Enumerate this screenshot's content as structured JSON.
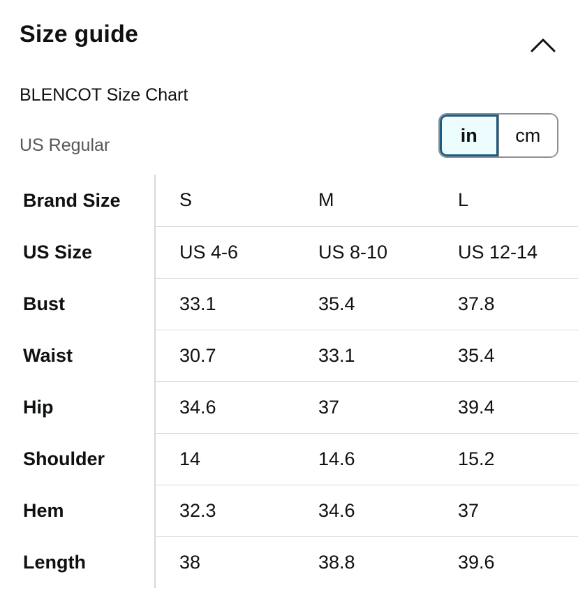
{
  "header": {
    "title": "Size guide",
    "collapse_icon": "chevron-up-icon"
  },
  "chart": {
    "brand_chart_label": "BLENCOT Size Chart",
    "region_label": "US Regular"
  },
  "unit_toggle": {
    "options": [
      "in",
      "cm"
    ],
    "selected": "in"
  },
  "table": {
    "rows": [
      {
        "label": "Brand Size",
        "values": [
          "S",
          "M",
          "L"
        ]
      },
      {
        "label": "US Size",
        "values": [
          "US 4-6",
          "US 8-10",
          "US 12-14"
        ]
      },
      {
        "label": "Bust",
        "values": [
          "33.1",
          "35.4",
          "37.8"
        ]
      },
      {
        "label": "Waist",
        "values": [
          "30.7",
          "33.1",
          "35.4"
        ]
      },
      {
        "label": "Hip",
        "values": [
          "34.6",
          "37",
          "39.4"
        ]
      },
      {
        "label": "Shoulder",
        "values": [
          "14",
          "14.6",
          "15.2"
        ]
      },
      {
        "label": "Hem",
        "values": [
          "32.3",
          "34.6",
          "37"
        ]
      },
      {
        "label": "Length",
        "values": [
          "38",
          "38.8",
          "39.6"
        ]
      }
    ]
  }
}
